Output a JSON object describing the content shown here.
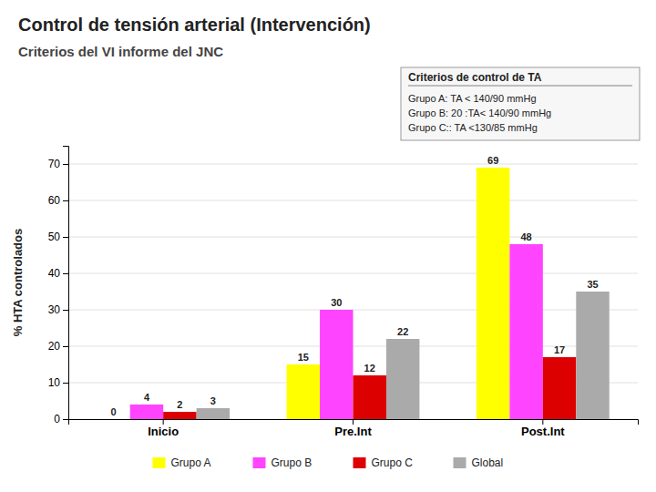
{
  "chart_data": {
    "type": "bar",
    "title": "Control de tensión arterial (Intervención)",
    "subtitle": "Criterios del VI informe del JNC",
    "y_label": "% HTA controlados",
    "categories": [
      "Inicio",
      "Pre.Int",
      "Post.Int"
    ],
    "series": [
      {
        "name": "Grupo A",
        "color": "#ffff00",
        "values": [
          0,
          15,
          69
        ]
      },
      {
        "name": "Grupo B",
        "color": "#ff44ff",
        "values": [
          4,
          30,
          48
        ]
      },
      {
        "name": "Grupo C",
        "color": "#dd0000",
        "values": [
          2,
          12,
          17
        ]
      },
      {
        "name": "Global",
        "color": "#aaaaaa",
        "values": [
          3,
          22,
          35
        ]
      }
    ],
    "ylim": [
      0,
      75
    ],
    "yticks": [
      0,
      10,
      20,
      30,
      40,
      50,
      60,
      70
    ],
    "grid": true,
    "data_labels": true,
    "legend": "bottom",
    "annotations": [
      "Criterios de control de TA",
      "Grupo A: TA < 140/90 mmHg",
      "Grupo B: 20 :TA< 140/90 mmHg",
      "Grupo C:: TA <130/85 mmHg"
    ]
  }
}
